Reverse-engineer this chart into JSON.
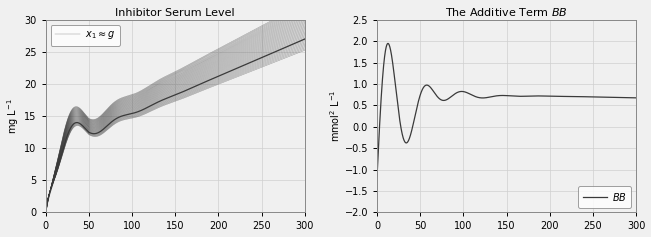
{
  "left_title": "Inhibitor Serum Level",
  "right_title": "The Additive Term $BB$",
  "left_ylabel": "mg L$^{-1}$",
  "right_ylabel": "mmol$^2$ L$^{-1}$",
  "left_legend": "$x_1 \\approx g$",
  "right_legend": "$BB$",
  "left_ylim": [
    0,
    30
  ],
  "right_ylim": [
    -2.0,
    2.5
  ],
  "xlim": [
    0,
    300
  ],
  "left_yticks": [
    0,
    5,
    10,
    15,
    20,
    25,
    30
  ],
  "right_yticks": [
    -2.0,
    -1.5,
    -1.0,
    -0.5,
    0.0,
    0.5,
    1.0,
    1.5,
    2.0,
    2.5
  ],
  "xticks": [
    0,
    50,
    100,
    150,
    200,
    250,
    300
  ],
  "line_color": "#3a3a3a",
  "background_color": "#f0f0f0",
  "grid_color": "#d0d0d0"
}
